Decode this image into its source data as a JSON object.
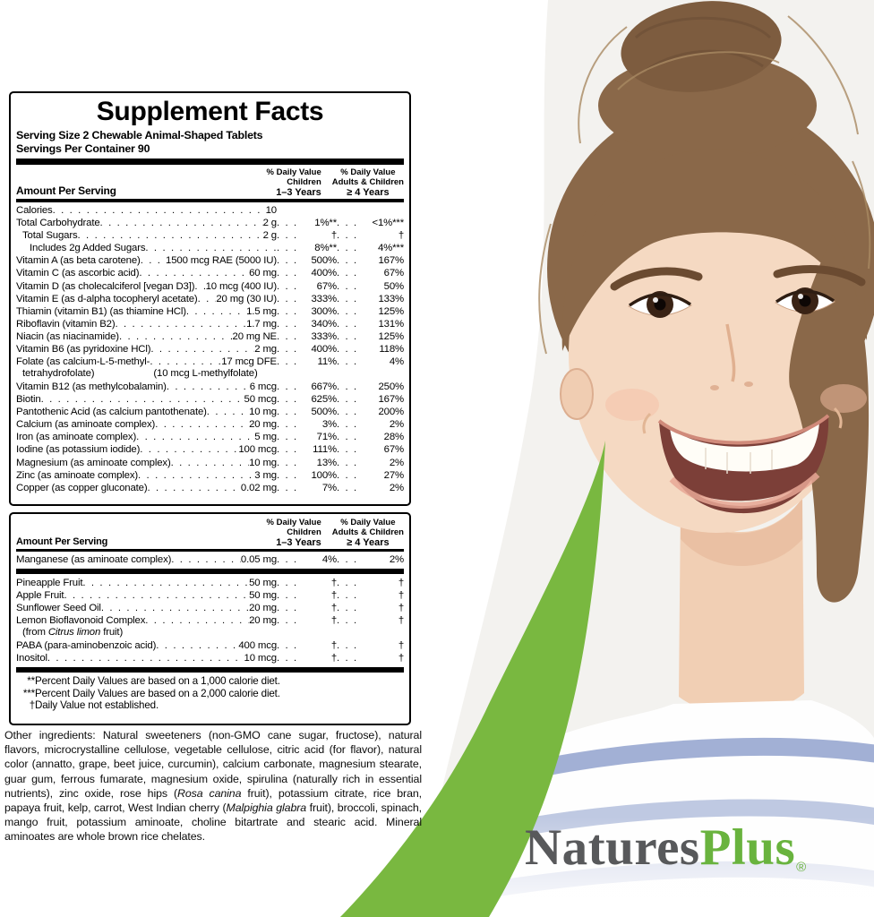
{
  "panel": {
    "title": "Supplement Facts",
    "serving_size": "Serving Size 2 Chewable Animal-Shaped Tablets",
    "servings_per_container": "Servings Per Container 90",
    "amount_per_serving_label": "Amount Per Serving",
    "col1_header": [
      "% Daily Value",
      "Children",
      "1–3 Years"
    ],
    "col2_header": [
      "% Daily Value",
      "Adults & Children",
      "≥ 4 Years"
    ],
    "table1": [
      {
        "n": "Calories",
        "a": "10",
        "p1": "",
        "p2": ""
      },
      {
        "n": "Total Carbohydrate",
        "a": "2 g",
        "p1": "1%**",
        "p2": "<1%***"
      },
      {
        "n": "Total Sugars",
        "a": "2 g",
        "p1": "†",
        "p2": "†",
        "ind": 1
      },
      {
        "n": "Includes 2g Added Sugars",
        "a": "",
        "p1": "8%**",
        "p2": "4%***",
        "ind": 2
      },
      {
        "n": "Vitamin A (as beta carotene)",
        "a": "1500 mcg RAE (5000 IU)",
        "p1": "500%",
        "p2": "167%"
      },
      {
        "n": "Vitamin C (as ascorbic acid)",
        "a": "60 mg",
        "p1": "400%",
        "p2": "67%"
      },
      {
        "n": "Vitamin D (as cholecalciferol [vegan D3])",
        "a": "10 mcg (400 IU)",
        "p1": "67%",
        "p2": "50%"
      },
      {
        "n": "Vitamin E (as d-alpha tocopheryl acetate)",
        "a": "20 mg (30 IU)",
        "p1": "333%",
        "p2": "133%"
      },
      {
        "n": "Thiamin (vitamin B1) (as thiamine HCl)",
        "a": "1.5 mg",
        "p1": "300%",
        "p2": "125%"
      },
      {
        "n": "Riboflavin (vitamin B2)",
        "a": "1.7 mg",
        "p1": "340%",
        "p2": "131%"
      },
      {
        "n": "Niacin (as niacinamide)",
        "a": "20 mg NE",
        "p1": "333%",
        "p2": "125%"
      },
      {
        "n": "Vitamin B6 (as pyridoxine HCl)",
        "a": "2 mg",
        "p1": "400%",
        "p2": "118%"
      },
      {
        "n": "Folate (as calcium-L-5-methyl-",
        "a": "17 mcg DFE",
        "p1": "11%",
        "p2": "4%",
        "sub": {
          "segments": [
            {
              "t": "tetrahydrofolate)"
            }
          ],
          "right": "(10 mcg L-methylfolate)"
        }
      },
      {
        "n": "Vitamin B12 (as methylcobalamin)",
        "a": "6 mcg",
        "p1": "667%",
        "p2": "250%"
      },
      {
        "n": "Biotin",
        "a": "50 mcg",
        "p1": "625%",
        "p2": "167%"
      },
      {
        "n": "Pantothenic Acid (as calcium pantothenate)",
        "a": "10 mg",
        "p1": "500%",
        "p2": "200%"
      },
      {
        "n": "Calcium (as aminoate complex)",
        "a": "20 mg",
        "p1": "3%",
        "p2": "2%"
      },
      {
        "n": "Iron (as aminoate complex)",
        "a": "5 mg",
        "p1": "71%",
        "p2": "28%"
      },
      {
        "n": "Iodine (as potassium iodide)",
        "a": "100 mcg",
        "p1": "111%",
        "p2": "67%"
      },
      {
        "n": "Magnesium (as aminoate complex)",
        "a": "10 mg",
        "p1": "13%",
        "p2": "2%"
      },
      {
        "n": "Zinc (as aminoate complex)",
        "a": "3 mg",
        "p1": "100%",
        "p2": "27%"
      },
      {
        "n": "Copper (as copper gluconate)",
        "a": "0.02 mg",
        "p1": "7%",
        "p2": "2%"
      }
    ],
    "table2a": [
      {
        "n": "Manganese (as aminoate complex)",
        "a": "0.05 mg",
        "p1": "4%",
        "p2": "2%"
      }
    ],
    "table2b": [
      {
        "n": "Pineapple Fruit",
        "a": "50 mg",
        "p1": "†",
        "p2": "†"
      },
      {
        "n": "Apple Fruit",
        "a": "50 mg",
        "p1": "†",
        "p2": "†"
      },
      {
        "n": "Sunflower Seed Oil",
        "a": "20 mg",
        "p1": "†",
        "p2": "†"
      },
      {
        "n": "Lemon Bioflavonoid Complex",
        "a": "20 mg",
        "p1": "†",
        "p2": "†",
        "sub": {
          "segments": [
            {
              "t": "(from "
            },
            {
              "t": "Citrus limon",
              "i": true
            },
            {
              "t": " fruit)"
            }
          ]
        }
      },
      {
        "n": "PABA (para-aminobenzoic acid)",
        "a": "400 mcg",
        "p1": "†",
        "p2": "†"
      },
      {
        "n": "Inositol",
        "a": "10 mcg",
        "p1": "†",
        "p2": "†"
      }
    ],
    "footnotes": [
      {
        "marker": "**",
        "text": "Percent Daily Values are based on a 1,000 calorie diet."
      },
      {
        "marker": "***",
        "text": "Percent Daily Values are based on a 2,000 calorie diet."
      },
      {
        "marker": "†",
        "text": "Daily Value not established."
      }
    ],
    "other_ingredients_segments": [
      {
        "t": "Other ingredients: Natural sweeteners (non-GMO cane sugar, fructose), natural flavors, microcrystalline cellulose, vegetable cellulose, citric acid (for flavor), natural color (annatto, grape, beet juice, curcumin), calcium carbonate, magnesium stearate, guar gum, ferrous fumarate, magnesium oxide, spirulina (naturally rich in essential nutrients), zinc oxide, rose hips ("
      },
      {
        "t": "Rosa canina",
        "i": true
      },
      {
        "t": " fruit), potassium citrate, rice bran, papaya fruit, kelp, carrot, West Indian cherry ("
      },
      {
        "t": "Malpighia glabra",
        "i": true
      },
      {
        "t": " fruit), broccoli, spinach, mango fruit, potassium aminoate, choline bitartrate and stearic acid. Mineral aminoates are whole brown rice chelates."
      }
    ]
  },
  "brand": {
    "name_primary": "Natures",
    "name_secondary": "Plus",
    "registered": "®",
    "colors": {
      "primary_gray": "#58595b",
      "logo_green": "#69b33e",
      "swoosh_green": "#79b840"
    }
  },
  "photo": {
    "subject": "smiling young girl with hair bun wearing blue-and-white striped shirt",
    "stripe_color": "#8b9cca"
  }
}
